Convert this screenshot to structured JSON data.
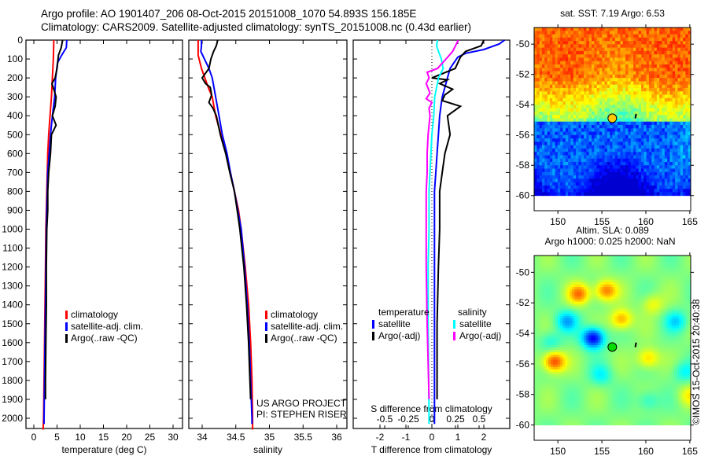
{
  "header": {
    "line1": "Argo profile: AO 1901407_206 08-Oct-2015 20151008_1070 54.893S 156.185E",
    "line2": "Climatology: CARS2009. Satellite-adjusted climatology: synTS_20151008.nc (0.43d earlier)"
  },
  "colors": {
    "climatology": "#ff0000",
    "satellite": "#0000ff",
    "argo": "#000000",
    "sal_satellite": "#00ffff",
    "sal_argo": "#ff00ff"
  },
  "chart_data": [
    {
      "type": "line",
      "name": "temperature-profile",
      "xlabel": "temperature (deg C)",
      "ylabel": "",
      "xlim": [
        -2,
        32
      ],
      "ylim": [
        2060,
        0
      ],
      "xticks": [
        0,
        5,
        10,
        15,
        20,
        25,
        30
      ],
      "yticks": [
        0,
        100,
        200,
        300,
        400,
        500,
        600,
        700,
        800,
        900,
        1000,
        1100,
        1200,
        1300,
        1400,
        1500,
        1600,
        1700,
        1800,
        1900,
        2000
      ],
      "legend": {
        "position": "middle-center",
        "entries": [
          "climatology",
          "satellite-adj. clim.",
          "Argo(..raw -QC)"
        ]
      },
      "series": [
        {
          "name": "climatology",
          "color": "#ff0000",
          "depth": [
            0,
            100,
            200,
            300,
            400,
            500,
            600,
            700,
            800,
            900,
            1000,
            1200,
            1400,
            1600,
            1800,
            2000,
            2060
          ],
          "values": [
            4.3,
            4.2,
            4.0,
            3.8,
            3.5,
            3.2,
            3.0,
            2.9,
            2.8,
            2.7,
            2.6,
            2.5,
            2.4,
            2.3,
            2.2,
            2.1,
            2.0
          ]
        },
        {
          "name": "satellite-adj. clim.",
          "color": "#0000ff",
          "depth": [
            0,
            40,
            80,
            120,
            200,
            300,
            400,
            500,
            600,
            700,
            800,
            900,
            1000,
            1200,
            1400,
            1600,
            1800,
            2000,
            2030
          ],
          "values": [
            7.1,
            7.0,
            6.0,
            5.1,
            4.7,
            4.5,
            4.0,
            3.6,
            3.3,
            3.0,
            2.9,
            2.8,
            2.7,
            2.6,
            2.5,
            2.4,
            2.3,
            2.2,
            2.2
          ]
        },
        {
          "name": "Argo(..raw -QC)",
          "color": "#000000",
          "depth": [
            0,
            40,
            80,
            150,
            200,
            230,
            260,
            300,
            350,
            400,
            450,
            500,
            600,
            700,
            800,
            900,
            1000,
            1200,
            1400,
            1600,
            1800,
            1900
          ],
          "values": [
            6.2,
            5.9,
            5.3,
            5.0,
            4.6,
            3.9,
            4.3,
            4.8,
            4.6,
            4.0,
            4.8,
            3.8,
            3.6,
            3.2,
            3.0,
            3.0,
            2.8,
            2.7,
            2.7,
            2.6,
            2.5,
            2.5
          ]
        }
      ]
    },
    {
      "type": "line",
      "name": "salinity-profile",
      "xlabel": "salinity",
      "xlim": [
        33.8,
        36.1
      ],
      "ylim": [
        2060,
        0
      ],
      "xticks": [
        34,
        34.5,
        35,
        35.5,
        36
      ],
      "legend": {
        "position": "lower-center",
        "entries": [
          "climatology",
          "satellite-adj. clim.",
          "Argo(..raw -QC)"
        ]
      },
      "annotation": [
        "US ARGO PROJECT",
        "PI: STEPHEN RISER"
      ],
      "series": [
        {
          "name": "climatology",
          "color": "#ff0000",
          "depth": [
            0,
            80,
            150,
            200,
            260,
            300,
            400,
            500,
            600,
            700,
            800,
            900,
            1000,
            1200,
            1400,
            1600,
            1800,
            2000,
            2060
          ],
          "values": [
            33.94,
            33.94,
            33.99,
            34.04,
            34.1,
            34.15,
            34.2,
            34.28,
            34.36,
            34.42,
            34.48,
            34.54,
            34.58,
            34.64,
            34.69,
            34.72,
            34.74,
            34.75,
            34.75
          ]
        },
        {
          "name": "satellite-adj. clim.",
          "color": "#0000ff",
          "depth": [
            0,
            30,
            60,
            90,
            150,
            200,
            300,
            400,
            500,
            600,
            700,
            800,
            900,
            1000,
            1200,
            1400,
            1600,
            1800,
            2000,
            2030
          ],
          "values": [
            33.99,
            33.99,
            33.98,
            34.02,
            34.1,
            34.15,
            34.2,
            34.25,
            34.3,
            34.37,
            34.42,
            34.48,
            34.53,
            34.58,
            34.63,
            34.67,
            34.7,
            34.72,
            34.74,
            34.74
          ]
        },
        {
          "name": "Argo(..raw -QC)",
          "color": "#000000",
          "depth": [
            0,
            30,
            60,
            100,
            150,
            200,
            230,
            250,
            290,
            330,
            360,
            400,
            500,
            600,
            700,
            800,
            900,
            1000,
            1200,
            1400,
            1600,
            1800,
            1900
          ],
          "values": [
            34.23,
            34.21,
            34.17,
            34.13,
            34.1,
            34.0,
            34.05,
            34.12,
            34.14,
            34.1,
            34.16,
            34.21,
            34.27,
            34.35,
            34.41,
            34.48,
            34.52,
            34.56,
            34.62,
            34.66,
            34.69,
            34.71,
            34.72
          ]
        }
      ]
    },
    {
      "type": "line",
      "name": "difference-profile",
      "xlabel": "T difference from climatology",
      "x2label": "S difference from climatology",
      "xlim": [
        -3,
        3
      ],
      "x2lim": [
        -0.75,
        0.75
      ],
      "ylim": [
        2060,
        0
      ],
      "xticks": [
        -2,
        -1,
        0,
        1,
        2
      ],
      "x2ticks": [
        -0.5,
        -0.25,
        0,
        0.25,
        0.5
      ],
      "legend": {
        "position": "lower-center",
        "entries": [
          "temperature",
          "satellite",
          "Argo(-adj)",
          "salinity",
          "satellite",
          "Argo(-adj)"
        ]
      },
      "series": [
        {
          "name": "temperature satellite",
          "color": "#0000ff",
          "axis": "T",
          "depth": [
            0,
            20,
            50,
            70,
            90,
            150,
            200,
            250,
            300,
            350,
            400,
            500,
            600,
            700,
            800,
            900,
            1000,
            1200,
            1500,
            2000,
            2030
          ],
          "values": [
            2.8,
            2.6,
            2.0,
            1.3,
            1.0,
            0.7,
            0.6,
            0.5,
            0.4,
            0.35,
            0.3,
            0.25,
            0.2,
            0.15,
            0.1,
            0.1,
            0.1,
            0.1,
            0.1,
            0.1,
            0.1
          ]
        },
        {
          "name": "temperature Argo(-adj)",
          "color": "#000000",
          "axis": "T",
          "depth": [
            0,
            30,
            60,
            90,
            150,
            200,
            210,
            230,
            260,
            290,
            320,
            350,
            400,
            500,
            600,
            700,
            800,
            900,
            1000,
            1200,
            1500,
            1900
          ],
          "values": [
            2.0,
            1.9,
            1.3,
            1.1,
            0.9,
            0.0,
            0.6,
            0.3,
            0.8,
            0.5,
            0.4,
            1.1,
            0.6,
            0.7,
            0.5,
            0.4,
            0.3,
            0.3,
            0.3,
            0.25,
            0.2,
            0.2
          ]
        },
        {
          "name": "salinity satellite",
          "color": "#00ffff",
          "axis": "S",
          "depth": [
            0,
            30,
            60,
            100,
            150,
            200,
            300,
            400,
            500,
            600,
            700,
            800,
            900,
            1000,
            1200,
            1500,
            2000,
            2030
          ],
          "values": [
            0.06,
            0.05,
            0.07,
            0.1,
            0.12,
            0.07,
            0.03,
            0.02,
            0.0,
            -0.01,
            -0.02,
            -0.03,
            -0.03,
            -0.03,
            -0.04,
            -0.04,
            -0.03,
            -0.03
          ]
        },
        {
          "name": "salinity Argo(-adj)",
          "color": "#ff00ff",
          "axis": "S",
          "depth": [
            0,
            30,
            60,
            100,
            150,
            170,
            200,
            230,
            280,
            310,
            330,
            360,
            400,
            500,
            600,
            700,
            800,
            900,
            1000,
            1200,
            1500,
            1900
          ],
          "values": [
            0.28,
            0.25,
            0.22,
            0.15,
            0.06,
            -0.05,
            -0.03,
            -0.06,
            -0.02,
            -0.06,
            0.0,
            -0.03,
            -0.02,
            -0.04,
            -0.05,
            -0.05,
            -0.06,
            -0.06,
            -0.06,
            -0.06,
            -0.05,
            -0.03
          ]
        }
      ]
    },
    {
      "type": "heatmap",
      "name": "sst-map",
      "title": "sat. SST: 7.19 Argo: 6.53",
      "xlim": [
        147.3,
        165.1
      ],
      "ylim": [
        -61,
        -48.9
      ],
      "xticks": [
        150,
        155,
        160,
        165
      ],
      "yticks": [
        -50,
        -52,
        -54,
        -56,
        -58,
        -60
      ],
      "marker": {
        "lon": 156.185,
        "lat": -54.893,
        "color": "#ffc800"
      },
      "data_extent_lat": [
        -60,
        -48.9
      ]
    },
    {
      "type": "heatmap",
      "name": "sla-map",
      "title": [
        "Altim. SLA: 0.089",
        "Argo h1000: 0.025 h2000: NaN"
      ],
      "xlim": [
        147.3,
        165.1
      ],
      "ylim": [
        -61,
        -48.9
      ],
      "xticks": [
        150,
        155,
        160,
        165
      ],
      "yticks": [
        -50,
        -52,
        -54,
        -56,
        -58,
        -60
      ],
      "marker": {
        "lon": 156.185,
        "lat": -54.893,
        "color": "#00dc00"
      },
      "data_extent_lat": [
        -60,
        -48.9
      ],
      "side_label": "©IMOS 15-Oct-2015 20:40:38"
    }
  ]
}
